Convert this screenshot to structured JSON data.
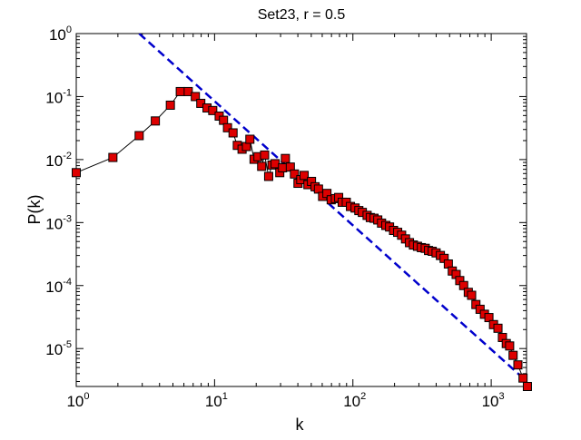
{
  "chart_data": {
    "type": "line",
    "title": "Set23, r = 0.5",
    "xlabel": "k",
    "ylabel": "P(k)",
    "xscale": "log",
    "yscale": "log",
    "xlim": [
      1,
      1800
    ],
    "ylim": [
      2.5e-06,
      1
    ],
    "grid": false,
    "legend": "none",
    "x_ticks": [
      {
        "base": "10",
        "exp": "0",
        "value": 1
      },
      {
        "base": "10",
        "exp": "1",
        "value": 10
      },
      {
        "base": "10",
        "exp": "2",
        "value": 100
      },
      {
        "base": "10",
        "exp": "3",
        "value": 1000
      }
    ],
    "y_ticks": [
      {
        "base": "10",
        "exp": "0",
        "value": 1
      },
      {
        "base": "10",
        "exp": "-1",
        "value": 0.1
      },
      {
        "base": "10",
        "exp": "-2",
        "value": 0.01
      },
      {
        "base": "10",
        "exp": "-3",
        "value": 0.001
      },
      {
        "base": "10",
        "exp": "-4",
        "value": 0.0001
      },
      {
        "base": "10",
        "exp": "-5",
        "value": 1e-05
      }
    ],
    "series": [
      {
        "style": "black line with red square markers",
        "line_color": "#000000",
        "marker_color": "#dd0000",
        "x": [
          1,
          1.84,
          2.85,
          3.73,
          4.79,
          5.65,
          6.45,
          7.26,
          7.95,
          8.82,
          9.7,
          10.8,
          11.6,
          12.4,
          13.6,
          14.6,
          15.8,
          17.0,
          18.0,
          19.3,
          20.6,
          21.9,
          23.0,
          24.6,
          26.0,
          27.4,
          29.6,
          31.0,
          32.5,
          35.3,
          37.8,
          40.1,
          42.0,
          44.4,
          47.3,
          50.2,
          53.3,
          56.4,
          60.4,
          64.9,
          69.7,
          74.7,
          78.9,
          83.7,
          89.6,
          96.0,
          103.7,
          110.4,
          117.0,
          126.7,
          133.6,
          142.2,
          151.3,
          161.1,
          173.0,
          184.1,
          196.8,
          210.7,
          225.0,
          240.2,
          256.5,
          273.8,
          293.1,
          312.6,
          333.5,
          352.3,
          374.5,
          399.5,
          429.1,
          456.7,
          489.8,
          523.0,
          557.8,
          592.3,
          632.1,
          682.7,
          721.6,
          774.9,
          830.6,
          893.4,
          962.5,
          1039,
          1119,
          1205,
          1285,
          1359,
          1439,
          1559,
          1698,
          1826
        ],
        "y": [
          0.0062,
          0.0108,
          0.024,
          0.041,
          0.073,
          0.12,
          0.12,
          0.1,
          0.078,
          0.066,
          0.06,
          0.049,
          0.042,
          0.032,
          0.0265,
          0.0168,
          0.0146,
          0.0161,
          0.021,
          0.0101,
          0.0111,
          0.0078,
          0.0118,
          0.0054,
          0.0082,
          0.0086,
          0.0062,
          0.0074,
          0.0104,
          0.0076,
          0.0059,
          0.0042,
          0.0048,
          0.0056,
          0.004,
          0.0045,
          0.0037,
          0.0034,
          0.0026,
          0.0029,
          0.0023,
          0.0024,
          0.0025,
          0.0021,
          0.0021,
          0.0018,
          0.0017,
          0.00155,
          0.00145,
          0.0013,
          0.0012,
          0.00117,
          0.0011,
          0.00098,
          0.0009,
          0.00085,
          0.00075,
          0.0007,
          0.00063,
          0.00055,
          0.00048,
          0.00044,
          0.00042,
          0.0004,
          0.00039,
          0.00036,
          0.00035,
          0.00033,
          0.0003,
          0.00027,
          0.00022,
          0.00017,
          0.00015,
          0.00012,
          0.0001,
          7.8e-05,
          7e-05,
          5e-05,
          4.2e-05,
          3.5e-05,
          3.1e-05,
          2.4e-05,
          2.1e-05,
          1.5e-05,
          1.2e-05,
          1.1e-05,
          7.8e-06,
          5.5e-06,
          3.4e-06,
          2.5e-06
        ]
      },
      {
        "style": "blue dashed power-law fit",
        "line_color": "#0000cc",
        "x": [
          2.85,
          1700
        ],
        "y": [
          1,
          3.4e-06
        ]
      }
    ]
  }
}
